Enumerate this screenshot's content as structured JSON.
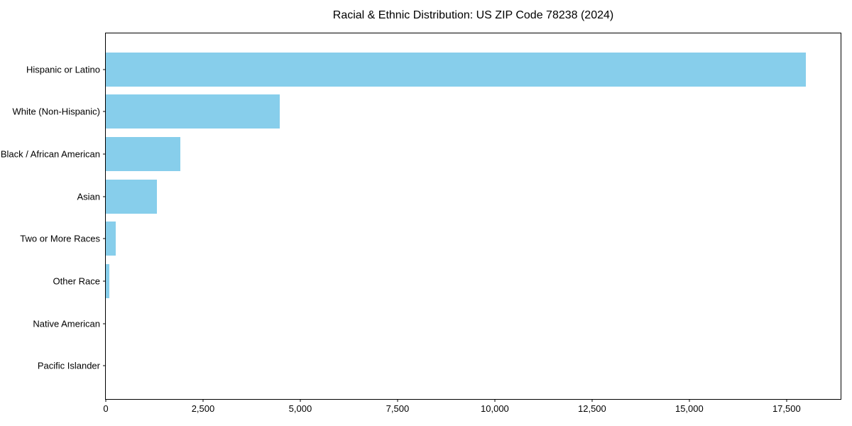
{
  "chart_data": {
    "type": "bar",
    "orientation": "horizontal",
    "title": "Racial & Ethnic Distribution: US ZIP Code 78238 (2024)",
    "xlabel": "",
    "ylabel": "",
    "categories": [
      "Hispanic or Latino",
      "White (Non-Hispanic)",
      "Black / African American",
      "Asian",
      "Two or More Races",
      "Other Race",
      "Native American",
      "Pacific Islander"
    ],
    "values": [
      17990,
      4470,
      1910,
      1310,
      260,
      90,
      0,
      0
    ],
    "xlim": [
      0,
      18890
    ],
    "xticks": [
      0,
      2500,
      5000,
      7500,
      10000,
      12500,
      15000,
      17500
    ],
    "xtick_labels": [
      "0",
      "2,500",
      "5,000",
      "7,500",
      "10,000",
      "12,500",
      "15,000",
      "17,500"
    ],
    "grid": false,
    "legend": "none",
    "bar_color": "#87CEEB",
    "axis_color": "#000000",
    "text_color": "#000000",
    "background_color": "#ffffff"
  }
}
